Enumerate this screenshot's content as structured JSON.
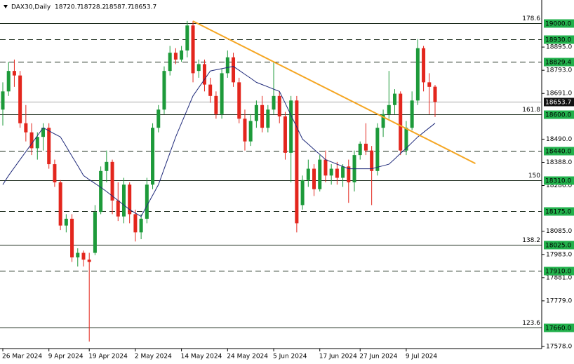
{
  "chart_data": {
    "type": "candlestick",
    "symbol": "DAX30,Daily",
    "ohlc_header": [
      18720.7,
      18728.2,
      18587.7,
      18653.7
    ],
    "categories": [
      "26 Mar 2024",
      null,
      null,
      null,
      null,
      null,
      null,
      null,
      "9 Apr 2024",
      null,
      null,
      null,
      null,
      null,
      null,
      "19 Apr 2024",
      null,
      null,
      null,
      null,
      null,
      null,
      null,
      "2 May 2024",
      null,
      null,
      null,
      null,
      null,
      null,
      null,
      "14 May 2024",
      null,
      null,
      null,
      null,
      null,
      null,
      null,
      "24 May 2024",
      null,
      null,
      null,
      null,
      null,
      null,
      null,
      "5 Jun 2024",
      null,
      null,
      null,
      null,
      null,
      null,
      null,
      "17 Jun 2024",
      null,
      null,
      null,
      null,
      null,
      null,
      "27 Jun 2024",
      null,
      null,
      null,
      null,
      null,
      null,
      null,
      "9 Jul 2024",
      null,
      null,
      null,
      null,
      null
    ],
    "open": [
      18620,
      18700,
      18790,
      18770,
      18560,
      18520,
      18450,
      18500,
      18540,
      18380,
      18300,
      18110,
      18140,
      17970,
      17990,
      17960,
      17990,
      18170,
      18350,
      18390,
      18220,
      18150,
      18290,
      18160,
      18080,
      18140,
      18290,
      18540,
      18620,
      18790,
      18870,
      18840,
      18880,
      18990,
      18790,
      18820,
      18730,
      18680,
      18600,
      18780,
      18850,
      18740,
      18580,
      18480,
      18570,
      18640,
      18540,
      18620,
      18680,
      18590,
      18430,
      18660,
      18200,
      18310,
      18360,
      18270,
      18400,
      18330,
      18360,
      18320,
      18370,
      18300,
      18420,
      18470,
      18440,
      18350,
      18540,
      18600,
      18640,
      18690,
      18440,
      18540,
      18660,
      18890,
      18740,
      18720.7
    ],
    "high": [
      18740,
      18830,
      18840,
      18790,
      18640,
      18560,
      18520,
      18560,
      18560,
      18400,
      18310,
      18160,
      18160,
      18010,
      18000,
      17990,
      18200,
      18370,
      18440,
      18400,
      18300,
      18320,
      18300,
      18180,
      18160,
      18320,
      18560,
      18640,
      18810,
      18900,
      18890,
      18900,
      19010,
      19010,
      18840,
      18840,
      18760,
      18700,
      18800,
      18880,
      18870,
      18760,
      18620,
      18600,
      18660,
      18680,
      18640,
      18830,
      18700,
      18610,
      18680,
      18680,
      18330,
      18400,
      18380,
      18420,
      18440,
      18380,
      18390,
      18380,
      18400,
      18440,
      18480,
      18560,
      18460,
      18560,
      18620,
      18790,
      18710,
      18700,
      18570,
      18700,
      18930,
      18900,
      18780,
      18728.2
    ],
    "low": [
      18550,
      18680,
      18720,
      18540,
      18480,
      18420,
      18400,
      18440,
      18360,
      18280,
      18090,
      18080,
      17950,
      17930,
      17930,
      17600,
      17980,
      18160,
      18300,
      18160,
      18130,
      18120,
      18120,
      18040,
      18050,
      18120,
      18270,
      18520,
      18600,
      18770,
      18820,
      18830,
      18850,
      18740,
      18760,
      18700,
      18650,
      18580,
      18580,
      18760,
      18720,
      18560,
      18440,
      18460,
      18540,
      18520,
      18520,
      18600,
      18560,
      18400,
      18300,
      18080,
      18180,
      18280,
      18240,
      18260,
      18300,
      18290,
      18290,
      18280,
      18210,
      18260,
      18400,
      18420,
      18200,
      18330,
      18500,
      18580,
      18600,
      18420,
      18420,
      18530,
      18640,
      18700,
      18600,
      18587.7
    ],
    "close": [
      18700,
      18790,
      18770,
      18560,
      18520,
      18450,
      18500,
      18540,
      18380,
      18300,
      18110,
      18140,
      17970,
      17990,
      17960,
      17950,
      18170,
      18350,
      18390,
      18220,
      18150,
      18290,
      18160,
      18080,
      18140,
      18290,
      18540,
      18620,
      18790,
      18870,
      18840,
      18880,
      18990,
      18780,
      18820,
      18730,
      18680,
      18600,
      18780,
      18850,
      18740,
      18580,
      18480,
      18570,
      18640,
      18540,
      18620,
      18680,
      18590,
      18430,
      18660,
      18120,
      18310,
      18360,
      18270,
      18400,
      18330,
      18360,
      18320,
      18370,
      18300,
      18420,
      18470,
      18440,
      18350,
      18540,
      18600,
      18640,
      18690,
      18440,
      18540,
      18660,
      18890,
      18740,
      18720,
      18653.7
    ],
    "up_color": "#1d9a3a",
    "down_color": "#e3261d",
    "ma": {
      "color": "#1f2a7a",
      "values": [
        18290,
        18330,
        18365,
        18400,
        18435,
        18470,
        18505,
        18540,
        18527,
        18513,
        18500,
        18458,
        18415,
        18373,
        18330,
        18312,
        18295,
        18278,
        18260,
        18240,
        18220,
        18200,
        18180,
        18165,
        18150,
        18197,
        18243,
        18290,
        18360,
        18430,
        18500,
        18560,
        18620,
        18680,
        18717,
        18753,
        18790,
        18795,
        18800,
        18805,
        18810,
        18793,
        18775,
        18758,
        18740,
        18730,
        18720,
        18710,
        18700,
        18648,
        18595,
        18543,
        18490,
        18468,
        18445,
        18423,
        18400,
        18390,
        18380,
        18370,
        18360,
        18360,
        18360,
        18360,
        18360,
        18367,
        18373,
        18380,
        18403,
        18427,
        18450,
        18475,
        18500,
        18520,
        18540,
        18560
      ]
    },
    "trendline": {
      "color": "#f5a623",
      "x": [
        33,
        82
      ],
      "y": [
        19009,
        18383
      ]
    },
    "levels": [
      {
        "price": 19000,
        "price_label": "19000.0",
        "fib": 178.6,
        "style": "solid"
      },
      {
        "price": 18930,
        "price_label": "18930.0",
        "style": "dashed"
      },
      {
        "price": 18829.4,
        "style": "dashed"
      },
      {
        "price": 18600,
        "price_label": "18600.0",
        "fib": 161.8,
        "style": "solid"
      },
      {
        "price": 18440,
        "price_label": "18440.0",
        "style": "dashed"
      },
      {
        "price": 18310,
        "price_label": "18310.0",
        "fib": 150,
        "style": "solid"
      },
      {
        "price": 18175,
        "price_label": "18175.0",
        "style": "dashed"
      },
      {
        "price": 18025,
        "price_label": "18025.0",
        "fib": 138.2,
        "style": "solid"
      },
      {
        "price": 17910,
        "price_label": "17910.0",
        "style": "dashed"
      },
      {
        "price": 17660,
        "price_label": "17660.0",
        "fib": 123.6,
        "style": "solid"
      }
    ],
    "level_color": "#22b14c",
    "current_price": 18653.7,
    "ylim": [
      17569,
      19102
    ],
    "yticks": [
      {
        "value": 18895,
        "label": "18895.0"
      },
      {
        "value": 18793,
        "label": "18793.0"
      },
      {
        "value": 18691,
        "label": "18691.0"
      },
      {
        "value": 18490,
        "label": "18490.0"
      },
      {
        "value": 18388,
        "label": "18388.0"
      },
      {
        "value": 18286,
        "label": "18286.0"
      },
      {
        "value": 18085,
        "label": "18085.0"
      },
      {
        "value": 17983,
        "label": "17983.0"
      },
      {
        "value": 17881,
        "label": "17881.0"
      },
      {
        "value": 17779,
        "label": "17779.0"
      },
      {
        "value": 17578,
        "label": "17578.0"
      }
    ]
  }
}
